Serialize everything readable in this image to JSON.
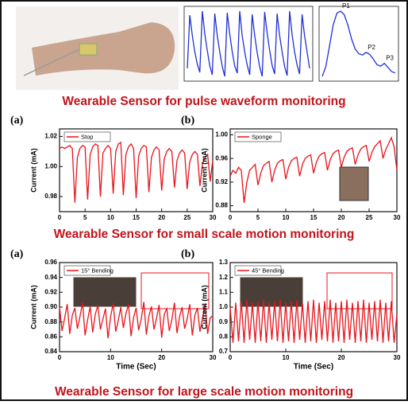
{
  "captions": [
    "Wearable Sensor for pulse waveform monitoring",
    "Wearable Sensor for small scale motion monitoring",
    "Wearable Sensor for large scale motion monitoring"
  ],
  "chart_data": [
    {
      "type": "line",
      "color": "#1f2fd6",
      "values": [
        0.3,
        0.95,
        0.7,
        0.5,
        0.35,
        0.25,
        1.0,
        0.72,
        0.52,
        0.33,
        0.22,
        0.97,
        0.7,
        0.5,
        0.32,
        0.2,
        0.98,
        0.72,
        0.5,
        0.33,
        0.24,
        1.0,
        0.7,
        0.5,
        0.34,
        0.22,
        0.96,
        0.7,
        0.49,
        0.32,
        0.2,
        0.99,
        0.73,
        0.52,
        0.33,
        0.23,
        0.97,
        0.7,
        0.5,
        0.32,
        0.21,
        1.0,
        0.71,
        0.5,
        0.34,
        0.23,
        0.96,
        0.7,
        0.5,
        0.3
      ]
    },
    {
      "type": "line",
      "color": "#1f2fd6",
      "values": [
        0.05,
        0.2,
        0.5,
        0.8,
        0.97,
        1.0,
        0.95,
        0.8,
        0.6,
        0.45,
        0.38,
        0.36,
        0.4,
        0.37,
        0.3,
        0.22,
        0.2,
        0.24,
        0.18,
        0.12,
        0.1
      ],
      "annotations": [
        "P1",
        "P2",
        "P3"
      ]
    },
    {
      "type": "line",
      "panel": "(a)",
      "y_label": "Current (mA)",
      "ylim": [
        0.97,
        1.025
      ],
      "yticks": [
        {
          "value": 0.98,
          "label": "0.98"
        },
        {
          "value": 1.0,
          "label": "1.00"
        },
        {
          "value": 1.02,
          "label": "1.02"
        }
      ],
      "xlim": [
        0,
        30
      ],
      "xticks": [
        0,
        5,
        10,
        15,
        20,
        25,
        30
      ],
      "legend": "upper left",
      "x": [
        0,
        0.5,
        1,
        1.5,
        2,
        2.5,
        3,
        3.5,
        4,
        4.5,
        5,
        5.5,
        6,
        6.5,
        7,
        7.5,
        8,
        8.5,
        9,
        9.5,
        10,
        10.5,
        11,
        11.5,
        12,
        12.5,
        13,
        13.5,
        14,
        14.5,
        15,
        15.5,
        16,
        16.5,
        17,
        17.5,
        18,
        18.5,
        19,
        19.5,
        20,
        20.5,
        21,
        21.5,
        22,
        22.5,
        23,
        23.5,
        24,
        24.5,
        25,
        25.5,
        26,
        26.5,
        27,
        27.5,
        28,
        28.5,
        29,
        29.5,
        30
      ],
      "series": [
        {
          "name": "Stop",
          "color": "#e8141c",
          "values": [
            1.012,
            1.013,
            1.012,
            1.013,
            1.014,
            1.012,
            0.976,
            1.006,
            1.012,
            1.014,
            1.013,
            0.978,
            1.008,
            1.013,
            1.015,
            1.014,
            0.98,
            1.009,
            1.012,
            1.014,
            1.012,
            0.982,
            1.01,
            1.015,
            1.016,
            0.981,
            1.008,
            1.013,
            1.015,
            1.012,
            0.979,
            1.007,
            1.012,
            1.014,
            1.013,
            0.983,
            1.006,
            1.011,
            1.013,
            1.011,
            0.984,
            1.005,
            1.01,
            1.012,
            1.01,
            0.986,
            1.004,
            1.009,
            1.011,
            1.009,
            0.985,
            1.003,
            1.008,
            1.01,
            1.008,
            0.987,
            1.002,
            1.006,
            1.008,
            0.99,
            1.004
          ]
        }
      ]
    },
    {
      "type": "line",
      "panel": "(b)",
      "y_label": "Current (mA)",
      "ylim": [
        0.87,
        1.01
      ],
      "yticks": [
        {
          "value": 0.88,
          "label": "0.88"
        },
        {
          "value": 0.92,
          "label": "0.92"
        },
        {
          "value": 0.96,
          "label": "0.96"
        },
        {
          "value": 1.0,
          "label": "1.00"
        }
      ],
      "xlim": [
        0,
        30
      ],
      "xticks": [
        0,
        5,
        10,
        15,
        20,
        25,
        30
      ],
      "legend": "upper left",
      "x": [
        0,
        0.5,
        1,
        1.5,
        2,
        2.5,
        3,
        3.5,
        4,
        4.5,
        5,
        5.5,
        6,
        6.5,
        7,
        7.5,
        8,
        8.5,
        9,
        9.5,
        10,
        10.5,
        11,
        11.5,
        12,
        12.5,
        13,
        13.5,
        14,
        14.5,
        15,
        15.5,
        16,
        16.5,
        17,
        17.5,
        18,
        18.5,
        19,
        19.5,
        20,
        20.5,
        21,
        21.5,
        22,
        22.5,
        23,
        23.5,
        24,
        24.5,
        25,
        25.5,
        26,
        26.5,
        27,
        27.5,
        28,
        28.5,
        29,
        29.5,
        30
      ],
      "series": [
        {
          "name": "Sponge",
          "color": "#e8141c",
          "values": [
            0.93,
            0.94,
            0.935,
            0.945,
            0.94,
            0.885,
            0.92,
            0.94,
            0.945,
            0.95,
            0.915,
            0.935,
            0.948,
            0.952,
            0.955,
            0.92,
            0.94,
            0.952,
            0.956,
            0.958,
            0.925,
            0.945,
            0.956,
            0.96,
            0.962,
            0.93,
            0.95,
            0.96,
            0.964,
            0.966,
            0.935,
            0.953,
            0.964,
            0.968,
            0.97,
            0.94,
            0.958,
            0.968,
            0.972,
            0.974,
            0.945,
            0.962,
            0.972,
            0.976,
            0.978,
            0.95,
            0.966,
            0.976,
            0.98,
            0.982,
            0.955,
            0.97,
            0.98,
            0.985,
            0.99,
            0.96,
            0.975,
            0.985,
            0.995,
            0.98,
            0.94
          ]
        }
      ]
    },
    {
      "type": "line",
      "panel": "(a)",
      "y_label": "Current (mA)",
      "x_label": "Time (Sec)",
      "ylim": [
        0.84,
        0.96
      ],
      "yticks": [
        0.84,
        0.86,
        0.88,
        {
          "value": 0.9,
          "label": "0.90"
        },
        0.92,
        0.94,
        0.96
      ],
      "xlim": [
        0,
        30
      ],
      "xticks": [
        0,
        10,
        20,
        30
      ],
      "legend": "upper left",
      "x": [
        0,
        0.5,
        1,
        1.5,
        2,
        2.5,
        3,
        3.5,
        4,
        4.5,
        5,
        5.5,
        6,
        6.5,
        7,
        7.5,
        8,
        8.5,
        9,
        9.5,
        10,
        10.5,
        11,
        11.5,
        12,
        12.5,
        13,
        13.5,
        14,
        14.5,
        15,
        15.5,
        16,
        16.5,
        17,
        17.5,
        18,
        18.5,
        19,
        19.5,
        20,
        20.5,
        21,
        21.5,
        22,
        22.5,
        23,
        23.5,
        24,
        24.5,
        25,
        25.5,
        26,
        26.5,
        27,
        27.5,
        28,
        28.5,
        29,
        29.5,
        30
      ],
      "series": [
        {
          "name": "15° Bending",
          "color": "#e8141c",
          "values": [
            0.9,
            0.868,
            0.885,
            0.904,
            0.864,
            0.889,
            0.899,
            0.871,
            0.887,
            0.906,
            0.862,
            0.883,
            0.901,
            0.866,
            0.89,
            0.903,
            0.87,
            0.884,
            0.898,
            0.858,
            0.887,
            0.905,
            0.867,
            0.882,
            0.9,
            0.872,
            0.891,
            0.904,
            0.861,
            0.886,
            0.899,
            0.869,
            0.884,
            0.907,
            0.863,
            0.888,
            0.901,
            0.87,
            0.885,
            0.903,
            0.859,
            0.89,
            0.898,
            0.868,
            0.883,
            0.906,
            0.865,
            0.887,
            0.9,
            0.871,
            0.884,
            0.904,
            0.862,
            0.889,
            0.899,
            0.867,
            0.885,
            0.905,
            0.864,
            0.886,
            0.888
          ]
        }
      ]
    },
    {
      "type": "line",
      "panel": "(b)",
      "y_label": "Current (mA)",
      "x_label": "Time (Sec)",
      "ylim": [
        0.7,
        1.3
      ],
      "yticks": [
        0.7,
        0.8,
        0.9,
        {
          "value": 1.0,
          "label": "1.0"
        },
        1.1,
        1.2,
        1.3
      ],
      "xlim": [
        0,
        30
      ],
      "xticks": [
        0,
        10,
        20,
        30
      ],
      "legend": "upper left",
      "x": [
        0,
        0.5,
        1,
        1.5,
        2,
        2.5,
        3,
        3.5,
        4,
        4.5,
        5,
        5.5,
        6,
        6.5,
        7,
        7.5,
        8,
        8.5,
        9,
        9.5,
        10,
        10.5,
        11,
        11.5,
        12,
        12.5,
        13,
        13.5,
        14,
        14.5,
        15,
        15.5,
        16,
        16.5,
        17,
        17.5,
        18,
        18.5,
        19,
        19.5,
        20,
        20.5,
        21,
        21.5,
        22,
        22.5,
        23,
        23.5,
        24,
        24.5,
        25,
        25.5,
        26,
        26.5,
        27,
        27.5,
        28,
        28.5,
        29,
        29.5,
        30
      ],
      "series": [
        {
          "name": "45° Bending",
          "color": "#e8141c",
          "values": [
            1.0,
            0.76,
            1.03,
            0.77,
            1.04,
            0.76,
            1.05,
            0.78,
            1.03,
            0.76,
            1.04,
            0.77,
            1.05,
            0.76,
            1.03,
            0.78,
            1.04,
            0.77,
            1.05,
            0.76,
            1.03,
            0.77,
            1.04,
            0.76,
            1.05,
            0.78,
            1.03,
            0.76,
            1.04,
            0.77,
            1.05,
            0.76,
            1.03,
            0.78,
            1.04,
            0.77,
            1.05,
            0.76,
            1.03,
            0.77,
            1.04,
            0.76,
            1.05,
            0.78,
            1.03,
            0.76,
            1.04,
            0.77,
            1.05,
            0.76,
            1.03,
            0.78,
            1.04,
            0.77,
            1.05,
            0.76,
            1.03,
            0.77,
            1.04,
            0.76,
            0.95
          ]
        }
      ]
    }
  ]
}
